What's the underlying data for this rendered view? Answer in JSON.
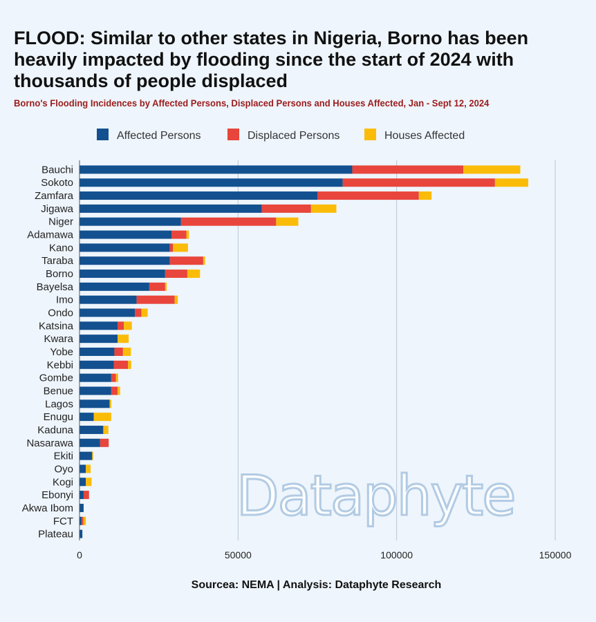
{
  "title": "FLOOD: Similar to other states in Nigeria, Borno has been heavily impacted by flooding since the start of 2024 with thousands of people displaced",
  "subtitle": "Borno's Flooding Incidences by Affected Persons, Displaced Persons and Houses Affected, Jan - Sept 12, 2024",
  "source": "Sourcea: NEMA | Analysis: Dataphyte Research",
  "watermark": "Dataphyte",
  "colors": {
    "affected": "#13508f",
    "displaced": "#e8453c",
    "houses": "#fbbc09",
    "grid": "#b9c5d3",
    "background": "#eef5fc"
  },
  "chart_data": {
    "type": "bar",
    "orientation": "horizontal",
    "stacked": true,
    "categories": [
      "Bauchi",
      "Sokoto",
      "Zamfara",
      "Jigawa",
      "Niger",
      "Adamawa",
      "Kano",
      "Taraba",
      "Borno",
      "Bayelsa",
      "Imo",
      "Ondo",
      "Katsina",
      "Kwara",
      "Yobe",
      "Kebbi",
      "Gombe",
      "Benue",
      "Lagos",
      "Enugu",
      "Kaduna",
      "Nasarawa",
      "Ekiti",
      "Oyo",
      "Kogi",
      "Ebonyi",
      "Akwa Ibom",
      "FCT",
      "Plateau"
    ],
    "series": [
      {
        "name": "Affected Persons",
        "color": "#13508f",
        "values": [
          86000,
          83000,
          75000,
          57500,
          32000,
          29000,
          28500,
          28500,
          27000,
          22000,
          18000,
          17500,
          12000,
          12000,
          11000,
          10800,
          10000,
          10000,
          9500,
          4500,
          7500,
          6500,
          4000,
          2000,
          2000,
          1300,
          1300,
          700,
          900
        ]
      },
      {
        "name": "Displaced Persons",
        "color": "#e8453c",
        "values": [
          35000,
          48000,
          32000,
          15500,
          30000,
          4700,
          1000,
          10500,
          7000,
          5000,
          12000,
          2000,
          2000,
          0,
          2700,
          4500,
          1500,
          2000,
          0,
          0,
          0,
          2700,
          0,
          0,
          0,
          1700,
          0,
          500,
          0
        ]
      },
      {
        "name": "Houses Affected",
        "color": "#fbbc09",
        "values": [
          18000,
          10500,
          4000,
          8000,
          7000,
          800,
          4700,
          600,
          4000,
          500,
          1000,
          2000,
          2500,
          3500,
          2500,
          1000,
          700,
          800,
          500,
          5500,
          1600,
          0,
          300,
          1500,
          1800,
          0,
          0,
          800,
          0
        ]
      }
    ],
    "xticks": [
      0,
      50000,
      100000,
      150000
    ],
    "xtick_labels": [
      "0",
      "50000",
      "100000",
      "150000"
    ],
    "xlim": [
      0,
      155000
    ],
    "grid": "vertical",
    "legend": "top-center"
  }
}
